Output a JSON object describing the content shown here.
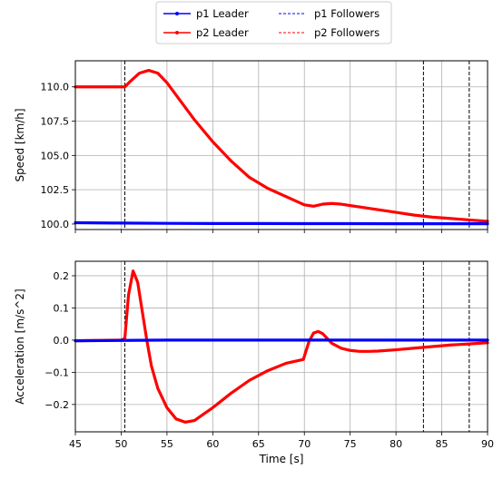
{
  "legend": {
    "items": [
      {
        "label": "p1 Leader",
        "color": "#0000ff",
        "style": "solid-marker"
      },
      {
        "label": "p2 Leader",
        "color": "#ff0000",
        "style": "solid-marker"
      },
      {
        "label": "p1 Followers",
        "color": "#0000ff",
        "style": "dashed"
      },
      {
        "label": "p2 Followers",
        "color": "#ff0000",
        "style": "dashed"
      }
    ],
    "placement": "top-center",
    "columns": 2
  },
  "chart_data": [
    {
      "type": "line",
      "ylabel": "Speed [km/h]",
      "xlabel": "",
      "xlim": [
        45,
        90
      ],
      "ylim": [
        99.6,
        111.9
      ],
      "grid": true,
      "xticks": [
        45,
        50,
        55,
        60,
        65,
        70,
        75,
        80,
        85,
        90
      ],
      "yticks": [
        "100.0",
        "102.5",
        "105.0",
        "107.5",
        "110.0"
      ],
      "vlines": [
        50.4,
        83,
        88
      ],
      "series": [
        {
          "name": "p2 Leader",
          "color": "#ff0000",
          "x": [
            45,
            50,
            50.4,
            51,
            52,
            53,
            54,
            55,
            56,
            57,
            58,
            59,
            60,
            62,
            64,
            66,
            68,
            70,
            71,
            72,
            73,
            74,
            76,
            78,
            80,
            82,
            84,
            86,
            88,
            90
          ],
          "y": [
            110.0,
            110.0,
            110.0,
            110.4,
            111.0,
            111.2,
            111.0,
            110.3,
            109.4,
            108.5,
            107.6,
            106.8,
            106.0,
            104.6,
            103.4,
            102.6,
            102.0,
            101.4,
            101.3,
            101.45,
            101.5,
            101.45,
            101.25,
            101.05,
            100.85,
            100.65,
            100.5,
            100.4,
            100.3,
            100.2
          ]
        },
        {
          "name": "p1 Leader",
          "color": "#0000ff",
          "x": [
            45,
            50,
            55,
            60,
            65,
            70,
            75,
            80,
            85,
            90
          ],
          "y": [
            100.1,
            100.07,
            100.05,
            100.04,
            100.04,
            100.03,
            100.03,
            100.02,
            100.02,
            100.02
          ]
        }
      ]
    },
    {
      "type": "line",
      "ylabel": "Acceleration [m/s^2]",
      "xlabel": "Time [s]",
      "xlim": [
        45,
        90
      ],
      "ylim": [
        -0.285,
        0.245
      ],
      "grid": true,
      "xticks": [
        "45",
        "50",
        "55",
        "60",
        "65",
        "70",
        "75",
        "80",
        "85",
        "90"
      ],
      "yticks": [
        "−0.2",
        "−0.1",
        "0.0",
        "0.1",
        "0.2"
      ],
      "vlines": [
        50.4,
        83,
        88
      ],
      "series": [
        {
          "name": "p2 Leader",
          "color": "#ff0000",
          "x": [
            45,
            50,
            50.4,
            50.8,
            51.3,
            51.8,
            52.3,
            52.8,
            53.3,
            54,
            55,
            56,
            57,
            58,
            59,
            60,
            62,
            64,
            66,
            68,
            69.9,
            70,
            70.5,
            71,
            71.5,
            72,
            72.5,
            73,
            74,
            75,
            76,
            77,
            78,
            80,
            82,
            84,
            86,
            88,
            90
          ],
          "y": [
            -0.002,
            0.0,
            0.005,
            0.14,
            0.215,
            0.18,
            0.09,
            0.0,
            -0.08,
            -0.15,
            -0.21,
            -0.245,
            -0.255,
            -0.25,
            -0.23,
            -0.21,
            -0.165,
            -0.125,
            -0.095,
            -0.072,
            -0.06,
            -0.05,
            -0.005,
            0.022,
            0.027,
            0.02,
            0.005,
            -0.01,
            -0.025,
            -0.032,
            -0.035,
            -0.035,
            -0.034,
            -0.03,
            -0.025,
            -0.02,
            -0.015,
            -0.012,
            -0.008
          ]
        },
        {
          "name": "p1 Leader",
          "color": "#0000ff",
          "x": [
            45,
            50,
            55,
            60,
            65,
            70,
            75,
            80,
            85,
            90
          ],
          "y": [
            -0.002,
            -0.001,
            0.0,
            0.0,
            0.0,
            0.0,
            0.0,
            0.0,
            0.0,
            0.0
          ]
        }
      ]
    }
  ]
}
